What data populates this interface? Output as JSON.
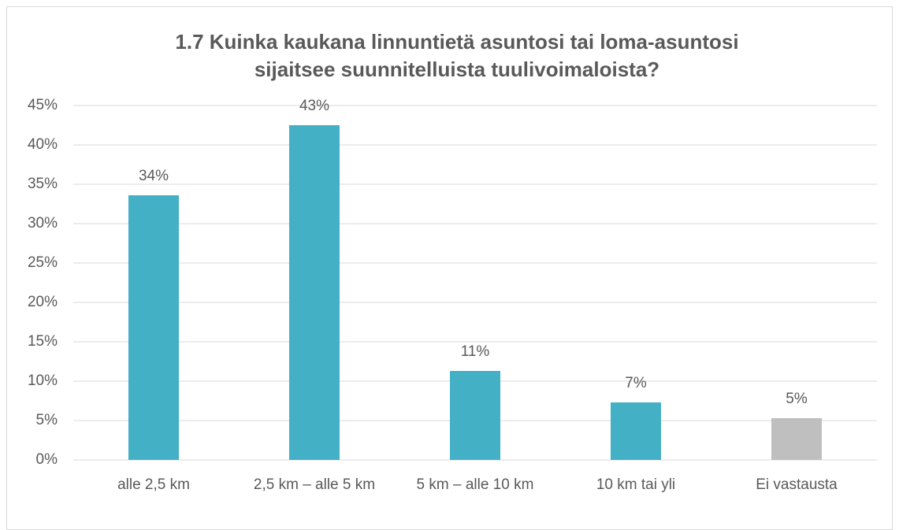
{
  "chart_data": {
    "type": "bar",
    "title": "1.7 Kuinka kaukana linnuntietä asuntosi tai loma-asuntosi sijaitsee suunnitelluista tuulivoimaloista?",
    "categories": [
      "alle 2,5 km",
      "2,5 km – alle 5 km",
      "5 km – alle 10 km",
      "10 km tai yli",
      "Ei vastausta"
    ],
    "values": [
      33.6,
      42.5,
      11.3,
      7.3,
      5.3
    ],
    "value_labels": [
      "34%",
      "43%",
      "11%",
      "7%",
      "5%"
    ],
    "colors": [
      "#43b0c5",
      "#43b0c5",
      "#43b0c5",
      "#43b0c5",
      "#bfbfbf"
    ],
    "ylim": [
      0,
      45
    ],
    "yticks": [
      {
        "value": 0,
        "label": "0%"
      },
      {
        "value": 5,
        "label": "5%"
      },
      {
        "value": 10,
        "label": "10%"
      },
      {
        "value": 15,
        "label": "15%"
      },
      {
        "value": 20,
        "label": "20%"
      },
      {
        "value": 25,
        "label": "25%"
      },
      {
        "value": 30,
        "label": "30%"
      },
      {
        "value": 35,
        "label": "35%"
      },
      {
        "value": 40,
        "label": "40%"
      },
      {
        "value": 45,
        "label": "45%"
      }
    ],
    "grid": true
  }
}
